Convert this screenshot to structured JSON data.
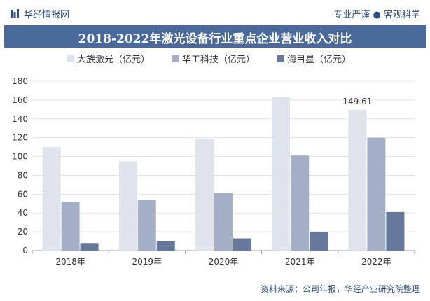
{
  "header": {
    "brand": "华经情报网",
    "tagline": "专业严谨 ● 客观科学"
  },
  "footer": {
    "source": "资料来源：公司年报，华经产业研究院整理"
  },
  "colors": {
    "title_bg": "#4a6a9b",
    "series": [
      "#dfe3ec",
      "#a3afc7",
      "#66789c"
    ]
  },
  "chart_data": {
    "type": "bar",
    "title": "2018-2022年激光设备行业重点企业营业收入对比",
    "categories": [
      "2018年",
      "2019年",
      "2020年",
      "2021年",
      "2022年"
    ],
    "series": [
      {
        "name": "大族激光（亿元）",
        "values": [
          110,
          95,
          119,
          163,
          149.61
        ]
      },
      {
        "name": "华工科技（亿元）",
        "values": [
          52,
          54,
          61,
          101,
          120
        ]
      },
      {
        "name": "海目星（亿元）",
        "values": [
          8,
          10,
          13,
          20,
          41
        ]
      }
    ],
    "data_labels": [
      {
        "series": 0,
        "index": 4,
        "text": "149.61"
      }
    ],
    "ylim": [
      0,
      180
    ],
    "yticks": [
      0,
      20,
      40,
      60,
      80,
      100,
      120,
      140,
      160,
      180
    ],
    "grid": true,
    "legend_position": "top-left"
  }
}
